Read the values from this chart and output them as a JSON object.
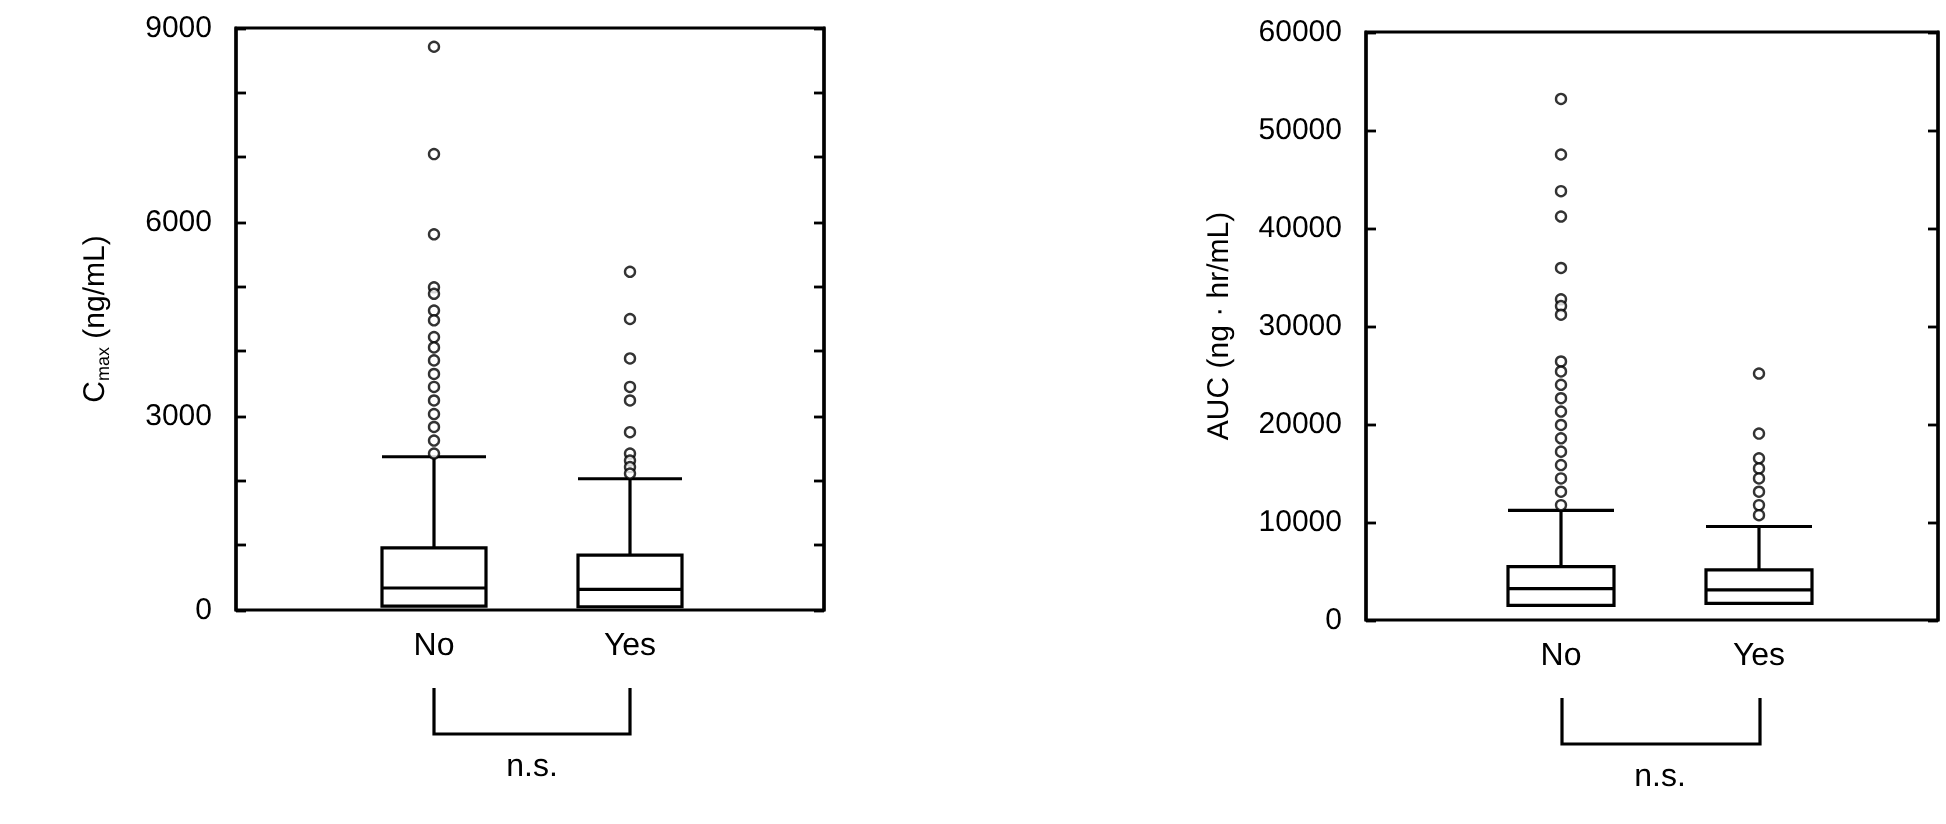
{
  "chart_data": [
    {
      "type": "box",
      "ylabel": "C$_{max}$ (ng/mL)",
      "categories": [
        "No",
        "Yes"
      ],
      "ylim": [
        0,
        9000
      ],
      "yticks": [
        0,
        {
          "value": 1000,
          "label": null
        },
        {
          "value": 2000,
          "label": null
        },
        3000,
        {
          "value": 4000,
          "label": null
        },
        {
          "value": 5000,
          "label": null
        },
        6000,
        {
          "value": 7000,
          "label": null
        },
        {
          "value": 8000,
          "label": null
        },
        9000
      ],
      "marker": "circle",
      "annotations": [
        "n.s."
      ],
      "series": [
        {
          "color": "#000000",
          "boxes": [
            {
              "low": 60,
              "q1": 60,
              "median": 340,
              "q3": 960,
              "high": 2370,
              "outliers": [
                8710,
                7050,
                5810,
                4990,
                4890,
                4630,
                4480,
                4220,
                4060,
                3860,
                3650,
                3450,
                3240,
                3030,
                2830,
                2620,
                2420
              ]
            },
            {
              "low": 50,
              "q1": 50,
              "median": 320,
              "q3": 850,
              "high": 2030,
              "outliers": [
                5230,
                4500,
                3890,
                3450,
                3240,
                2750,
                2420,
                2310,
                2210,
                2110
              ]
            }
          ]
        }
      ]
    },
    {
      "type": "box",
      "ylabel": "AUC (ng · hr/mL)",
      "categories": [
        "No",
        "Yes"
      ],
      "ylim": [
        0,
        60000
      ],
      "yticks": [
        0,
        10000,
        20000,
        30000,
        40000,
        50000,
        60000
      ],
      "marker": "circle",
      "annotations": [
        "n.s."
      ],
      "series": [
        {
          "color": "#000000",
          "boxes": [
            {
              "low": 1500,
              "q1": 1500,
              "median": 3200,
              "q3": 5450,
              "high": 11180,
              "outliers": [
                53170,
                47500,
                43760,
                41170,
                35920,
                32720,
                32040,
                31150,
                26380,
                25360,
                24000,
                22630,
                21270,
                19900,
                18540,
                17180,
                15810,
                14450,
                13090,
                11720
              ]
            },
            {
              "low": 1700,
              "q1": 1700,
              "median": 3070,
              "q3": 5110,
              "high": 9540,
              "outliers": [
                25150,
                19020,
                16500,
                15470,
                14450,
                13090,
                11720,
                10700
              ]
            }
          ]
        }
      ]
    }
  ]
}
